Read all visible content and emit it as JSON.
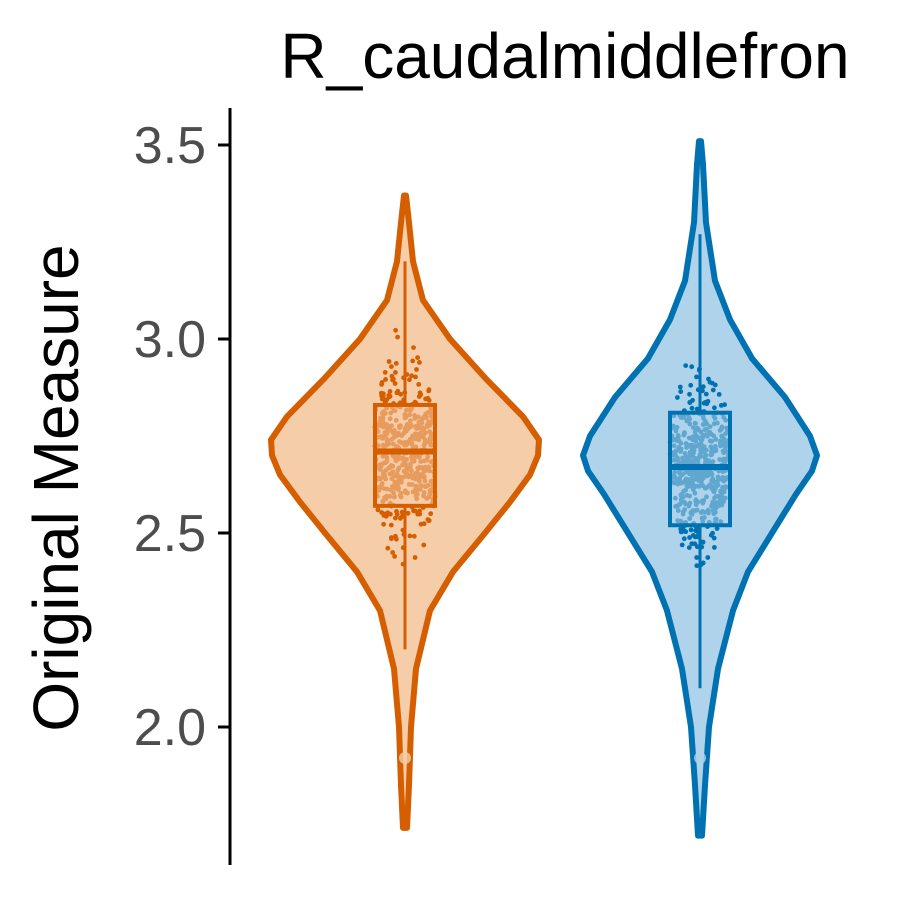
{
  "chart_data": {
    "type": "violin",
    "title": "R_caudalmiddlefron",
    "xlabel": "",
    "ylabel": "Original Measure",
    "ylim": [
      1.7,
      3.6
    ],
    "yticks": [
      2.0,
      2.5,
      3.0,
      3.5
    ],
    "ytick_labels": [
      "2.0",
      "2.5",
      "3.0",
      "3.5"
    ],
    "grid": false,
    "legend": "none",
    "groups": [
      {
        "color": "#D55E00",
        "fill": "#F5CDA8",
        "violin_min": 1.74,
        "violin_max": 3.37,
        "box": {
          "q1": 2.57,
          "median": 2.71,
          "q3": 2.83,
          "whisker_low": 2.2,
          "whisker_high": 3.2
        },
        "outliers": [
          1.92
        ]
      },
      {
        "color": "#0072B2",
        "fill": "#AFD3EA",
        "violin_min": 1.72,
        "violin_max": 3.51,
        "box": {
          "q1": 2.52,
          "median": 2.67,
          "q3": 2.81,
          "whisker_low": 2.1,
          "whisker_high": 3.27
        },
        "outliers": [
          1.92
        ]
      }
    ]
  }
}
